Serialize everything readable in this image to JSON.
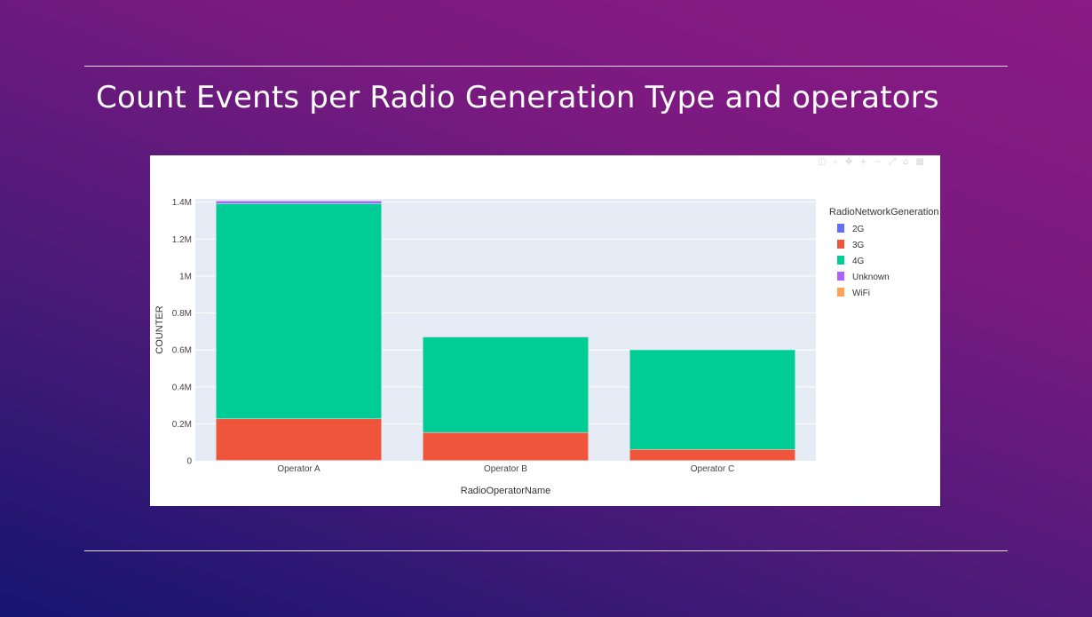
{
  "slide": {
    "title": "Count Events per Radio Generation Type and operators"
  },
  "modebar": {
    "icons": [
      "camera-icon",
      "zoom-icon",
      "pan-icon",
      "zoom-in-icon",
      "zoom-out-icon",
      "autoscale-icon",
      "reset-axes-icon",
      "plotly-logo-icon"
    ]
  },
  "chart_data": {
    "type": "bar",
    "barmode": "stack",
    "categories": [
      "Operator A",
      "Operator B",
      "Operator C"
    ],
    "series": [
      {
        "name": "2G",
        "color": "#636efa",
        "values": [
          2000,
          1000,
          1000
        ]
      },
      {
        "name": "3G",
        "color": "#ef553b",
        "values": [
          225000,
          152000,
          60000
        ]
      },
      {
        "name": "4G",
        "color": "#00cc96",
        "values": [
          1165000,
          517000,
          540000
        ]
      },
      {
        "name": "Unknown",
        "color": "#ab63fa",
        "values": [
          14000,
          3000,
          2000
        ]
      },
      {
        "name": "WiFi",
        "color": "#ffa15a",
        "values": [
          0,
          0,
          0
        ]
      }
    ],
    "xlabel": "RadioOperatorName",
    "ylabel": "COUNTER",
    "ylim": [
      0,
      1400000
    ],
    "yticks": [
      0,
      200000,
      400000,
      600000,
      800000,
      1000000,
      1200000,
      1400000
    ],
    "ytick_labels": [
      "0",
      "0.2M",
      "0.4M",
      "0.6M",
      "0.8M",
      "1M",
      "1.2M",
      "1.4M"
    ],
    "legend_title": "RadioNetworkGeneration",
    "legend_position": "right",
    "grid": true,
    "plot_bg": "#e5ecf6"
  }
}
